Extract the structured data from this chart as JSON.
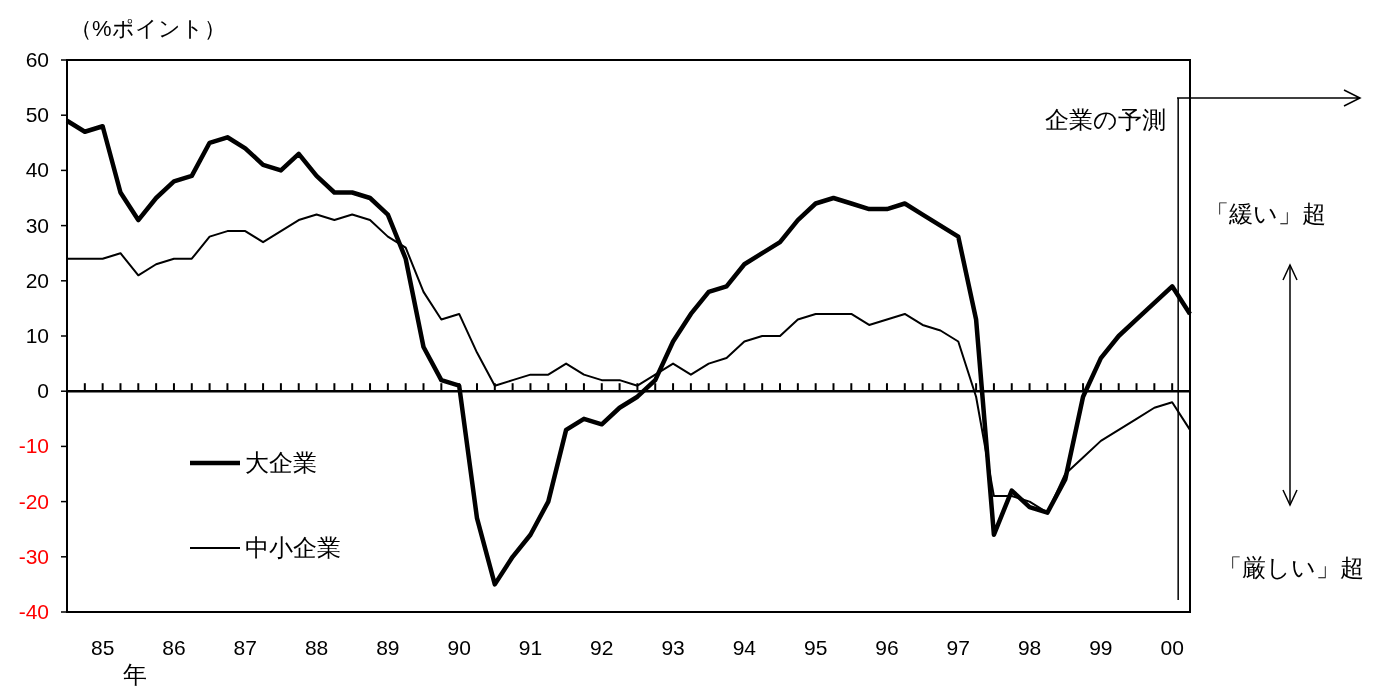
{
  "chart_data": {
    "type": "line",
    "ylabel": "（%ポイント）",
    "categories": [
      null,
      null,
      "85",
      null,
      null,
      null,
      "86",
      null,
      null,
      null,
      "87",
      null,
      null,
      null,
      "88",
      null,
      null,
      null,
      "89",
      null,
      null,
      null,
      "90",
      null,
      null,
      null,
      "91",
      null,
      null,
      null,
      "92",
      null,
      null,
      null,
      "93",
      null,
      null,
      null,
      "94",
      null,
      null,
      null,
      "95",
      null,
      null,
      null,
      "96",
      null,
      null,
      null,
      "97",
      null,
      null,
      null,
      "98",
      null,
      null,
      null,
      "99",
      null,
      null,
      null,
      "00",
      null
    ],
    "series": [
      {
        "name": "大企業",
        "color": "#000000",
        "values": [
          49,
          47,
          48,
          36,
          31,
          35,
          38,
          39,
          45,
          46,
          44,
          41,
          40,
          43,
          39,
          36,
          36,
          35,
          32,
          24,
          8,
          2,
          1,
          -23,
          -35,
          -30,
          -26,
          -20,
          -7,
          -5,
          -6,
          -3,
          -1,
          2,
          9,
          14,
          18,
          19,
          23,
          25,
          27,
          31,
          34,
          35,
          34,
          33,
          33,
          34,
          32,
          30,
          28,
          13,
          -26,
          -18,
          -21,
          -22,
          -16,
          -1,
          6,
          10,
          13,
          16,
          19,
          14
        ]
      },
      {
        "name": "中小企業",
        "color": "#000000",
        "values": [
          24,
          24,
          24,
          25,
          21,
          23,
          24,
          24,
          28,
          29,
          29,
          27,
          29,
          31,
          32,
          31,
          32,
          31,
          28,
          26,
          18,
          13,
          14,
          7,
          1,
          2,
          3,
          3,
          5,
          3,
          2,
          2,
          1,
          3,
          5,
          3,
          5,
          6,
          9,
          10,
          10,
          13,
          14,
          14,
          14,
          12,
          13,
          14,
          12,
          11,
          9,
          -1,
          -19,
          -19,
          -20,
          -22,
          -15,
          -12,
          -9,
          -7,
          -5,
          -3,
          -2,
          -7
        ]
      }
    ],
    "ylim": [
      -40,
      60
    ],
    "yticks": [
      -40,
      -30,
      -20,
      -10,
      0,
      10,
      20,
      30,
      40,
      50,
      60
    ],
    "ref_lines": [
      {
        "axis": "x",
        "value": "00",
        "label": "企業の予測",
        "color": "#000000"
      }
    ],
    "annotations": [
      "「緩い」超",
      "「厳しい」超",
      "年"
    ],
    "legend": "bottom left",
    "marker": "none",
    "line_style": "solid"
  }
}
